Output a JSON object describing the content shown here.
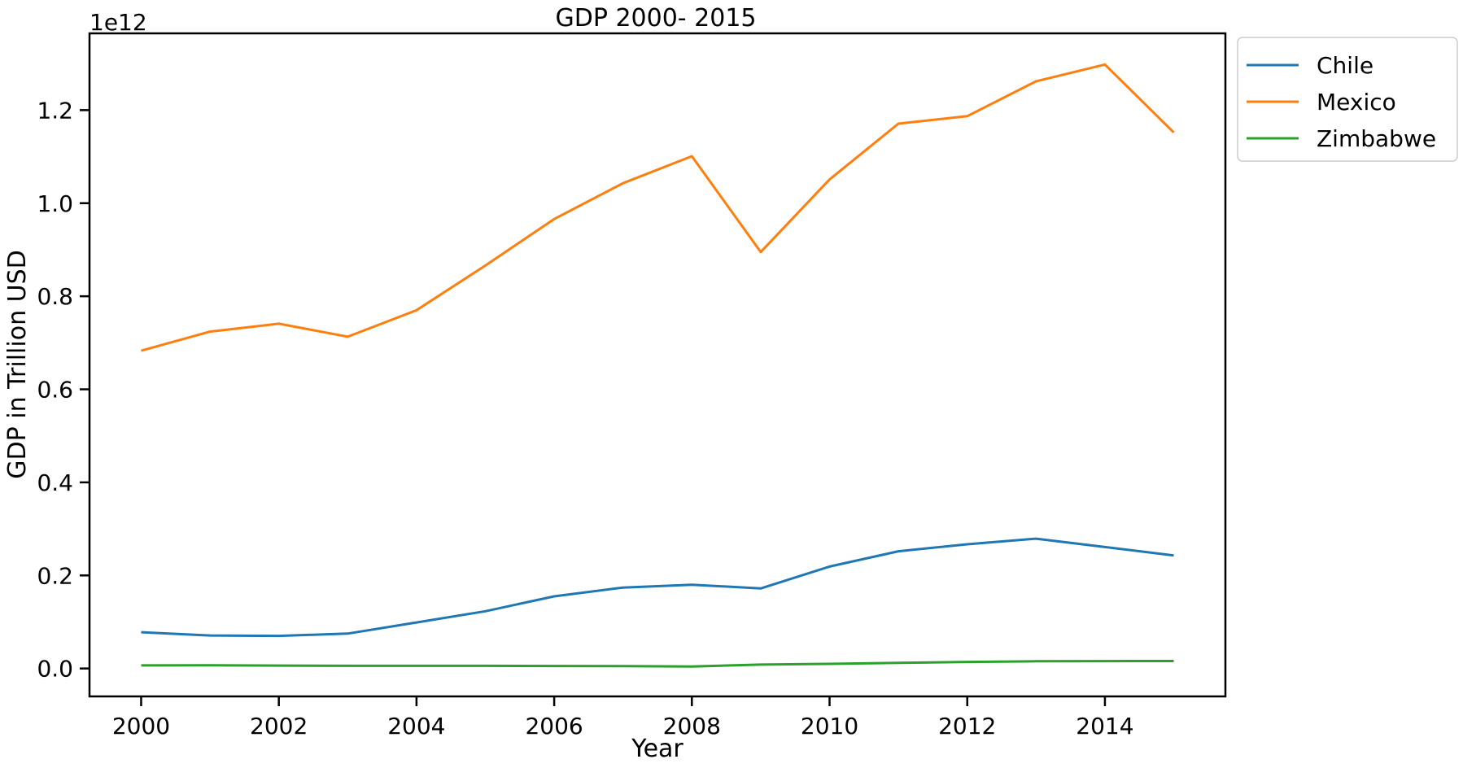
{
  "chart_data": {
    "type": "line",
    "title": "GDP 2000- 2015",
    "xlabel": "Year",
    "ylabel": "GDP in Trillion USD",
    "offset_text": "1e12",
    "x": [
      2000,
      2001,
      2002,
      2003,
      2004,
      2005,
      2006,
      2007,
      2008,
      2009,
      2010,
      2011,
      2012,
      2013,
      2014,
      2015
    ],
    "xticks": [
      "2000",
      "2002",
      "2004",
      "2006",
      "2008",
      "2010",
      "2012",
      "2014"
    ],
    "yticks": [
      "0.0",
      "0.2",
      "0.4",
      "0.6",
      "0.8",
      "1.0",
      "1.2"
    ],
    "xlim": [
      1999.25,
      2015.75
    ],
    "ylim": [
      -0.06,
      1.365
    ],
    "grid": false,
    "legend_position": "outside-top-right",
    "series": [
      {
        "name": "Chile",
        "color": "#1f77b4",
        "values": [
          0.078,
          0.071,
          0.07,
          0.075,
          0.099,
          0.123,
          0.155,
          0.174,
          0.18,
          0.172,
          0.219,
          0.252,
          0.267,
          0.279,
          0.261,
          0.243
        ]
      },
      {
        "name": "Mexico",
        "color": "#ff7f0e",
        "values": [
          0.683,
          0.724,
          0.741,
          0.713,
          0.77,
          0.866,
          0.966,
          1.043,
          1.101,
          0.895,
          1.051,
          1.171,
          1.187,
          1.262,
          1.298,
          1.152
        ]
      },
      {
        "name": "Zimbabwe",
        "color": "#2ca02c",
        "values": [
          0.0067,
          0.0068,
          0.0063,
          0.0057,
          0.0058,
          0.0057,
          0.0054,
          0.0053,
          0.0044,
          0.0083,
          0.01,
          0.012,
          0.0142,
          0.0155,
          0.0159,
          0.0161
        ]
      }
    ]
  }
}
